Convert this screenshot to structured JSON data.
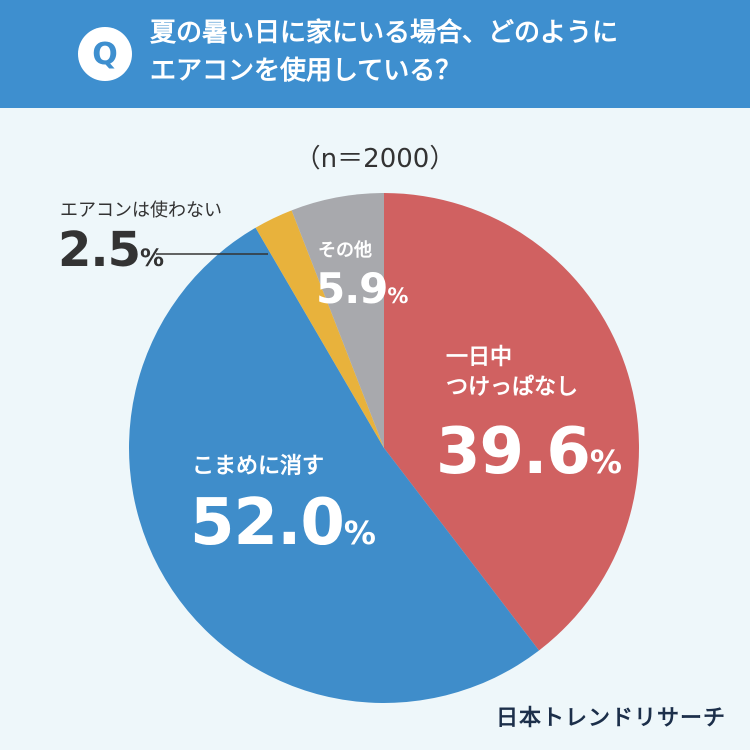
{
  "header": {
    "badge": "Q",
    "title_line1": "夏の暑い日に家にいる場合、どのように",
    "title_line2": "エアコンを使用している？"
  },
  "sample": "（n＝2000）",
  "brand": "日本トレンドリサーチ",
  "chart_data": {
    "type": "pie",
    "title": "夏の暑い日に家にいる場合、どのようにエアコンを使用している？",
    "n": 2000,
    "unit": "%",
    "slices": [
      {
        "label": "一日中つけっぱなし",
        "label_lines": [
          "一日中",
          "つけっぱなし"
        ],
        "value": 39.6,
        "value_text": "39.6",
        "color": "#d06161"
      },
      {
        "label": "こまめに消す",
        "label_lines": [
          "こまめに消す"
        ],
        "value": 52.0,
        "value_text": "52.0",
        "color": "#3f8dca"
      },
      {
        "label": "エアコンは使わない",
        "label_lines": [
          "エアコンは使わない"
        ],
        "value": 2.5,
        "value_text": "2.5",
        "color": "#e8b23c"
      },
      {
        "label": "その他",
        "label_lines": [
          "その他"
        ],
        "value": 5.9,
        "value_text": "5.9",
        "color": "#a8a9ad"
      }
    ],
    "start": "12 o'clock",
    "direction": "clockwise"
  }
}
